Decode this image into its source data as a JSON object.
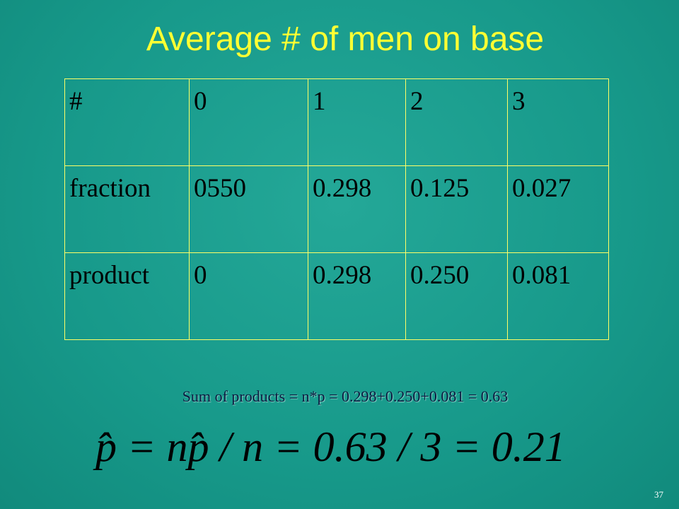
{
  "title": "Average # of men on base",
  "table": {
    "rows": [
      [
        "#",
        "0",
        "1",
        "2",
        "3"
      ],
      [
        "fraction",
        "0550",
        "0.298",
        "0.125",
        "0.027"
      ],
      [
        "product",
        "0",
        "0.298",
        "0.250",
        "0.081"
      ]
    ]
  },
  "sum_line": "Sum of products = n*p = 0.298+0.250+0.081 = 0.63",
  "formula": "p̂ = np̂ / n = 0.63 / 3 = 0.21",
  "page_number": "37"
}
